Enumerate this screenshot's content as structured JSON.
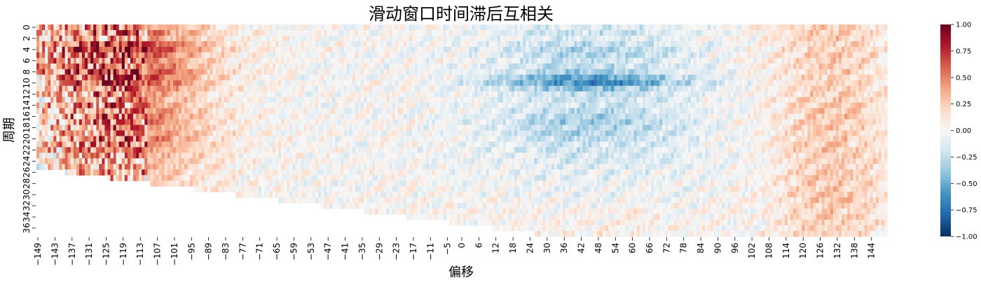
{
  "chart_data": {
    "type": "heatmap",
    "title": "滑动窗口时间滞后互相关",
    "xlabel": "偏移",
    "ylabel": "周期",
    "x_range": [
      -149,
      149
    ],
    "y_range": [
      0,
      37
    ],
    "x_tick_labels": [
      "-149",
      "-143",
      "-137",
      "-131",
      "-125",
      "-119",
      "-113",
      "-107",
      "-101",
      "-95",
      "-89",
      "-83",
      "-77",
      "-71",
      "-65",
      "-59",
      "-53",
      "-47",
      "-41",
      "-35",
      "-29",
      "-23",
      "-17",
      "-11",
      "-5",
      "0",
      "6",
      "12",
      "18",
      "24",
      "30",
      "36",
      "42",
      "48",
      "54",
      "60",
      "66",
      "72",
      "78",
      "84",
      "90",
      "96",
      "102",
      "108",
      "114",
      "120",
      "126",
      "132",
      "138",
      "144"
    ],
    "y_tick_labels": [
      "0",
      "2",
      "4",
      "6",
      "8",
      "10",
      "12",
      "14",
      "16",
      "18",
      "20",
      "22",
      "24",
      "26",
      "28",
      "30",
      "32",
      "34",
      "36"
    ],
    "colormap": {
      "name": "RdBu_r",
      "stops": [
        "#053061",
        "#2166ac",
        "#4393c3",
        "#92c5de",
        "#d1e5f0",
        "#f7f7f7",
        "#fddbc7",
        "#f4a582",
        "#d6604d",
        "#b2182b",
        "#67001f"
      ]
    },
    "colorbar": {
      "min": -1.0,
      "max": 1.0,
      "tick_labels": [
        "1.00",
        "0.75",
        "0.50",
        "0.25",
        "0.00",
        "−0.25",
        "−0.50",
        "−0.75",
        "−1.00"
      ],
      "tick_values": [
        1.0,
        0.75,
        0.5,
        0.25,
        0.0,
        -0.25,
        -0.5,
        -0.75,
        -1.0
      ]
    },
    "rows": [
      {
        "period": 0,
        "valid_from": -149,
        "valid_to": 149,
        "left_peak": 0.55,
        "mid_band": -0.15
      },
      {
        "period": 1,
        "valid_from": -149,
        "valid_to": 149,
        "left_peak": 0.6,
        "mid_band": -0.2
      },
      {
        "period": 2,
        "valid_from": -149,
        "valid_to": 149,
        "left_peak": 0.5,
        "mid_band": -0.15
      },
      {
        "period": 3,
        "valid_from": -149,
        "valid_to": 149,
        "left_peak": 0.8,
        "mid_band": -0.25
      },
      {
        "period": 4,
        "valid_from": -149,
        "valid_to": 149,
        "left_peak": 0.85,
        "mid_band": -0.3
      },
      {
        "period": 5,
        "valid_from": -149,
        "valid_to": 149,
        "left_peak": 0.7,
        "mid_band": -0.3
      },
      {
        "period": 6,
        "valid_from": -149,
        "valid_to": 149,
        "left_peak": 0.6,
        "mid_band": -0.2
      },
      {
        "period": 7,
        "valid_from": -149,
        "valid_to": 149,
        "left_peak": 0.65,
        "mid_band": -0.25
      },
      {
        "period": 8,
        "valid_from": -149,
        "valid_to": 149,
        "left_peak": 0.75,
        "mid_band": -0.35
      },
      {
        "period": 9,
        "valid_from": -149,
        "valid_to": 149,
        "left_peak": 0.7,
        "mid_band": -0.55
      },
      {
        "period": 10,
        "valid_from": -149,
        "valid_to": 149,
        "left_peak": 0.7,
        "mid_band": -0.65
      },
      {
        "period": 11,
        "valid_from": -149,
        "valid_to": 149,
        "left_peak": 0.6,
        "mid_band": -0.4
      },
      {
        "period": 12,
        "valid_from": -149,
        "valid_to": 149,
        "left_peak": 0.5,
        "mid_band": -0.25
      },
      {
        "period": 13,
        "valid_from": -149,
        "valid_to": 149,
        "left_peak": 0.45,
        "mid_band": -0.2
      },
      {
        "period": 14,
        "valid_from": -149,
        "valid_to": 149,
        "left_peak": 0.5,
        "mid_band": -0.2
      },
      {
        "period": 15,
        "valid_from": -149,
        "valid_to": 149,
        "left_peak": 0.55,
        "mid_band": -0.25
      },
      {
        "period": 16,
        "valid_from": -149,
        "valid_to": 149,
        "left_peak": 0.6,
        "mid_band": -0.3
      },
      {
        "period": 17,
        "valid_from": -149,
        "valid_to": 149,
        "left_peak": 0.55,
        "mid_band": -0.35
      },
      {
        "period": 18,
        "valid_from": -149,
        "valid_to": 149,
        "left_peak": 0.5,
        "mid_band": -0.3
      },
      {
        "period": 19,
        "valid_from": -149,
        "valid_to": 149,
        "left_peak": 0.55,
        "mid_band": -0.3
      },
      {
        "period": 20,
        "valid_from": -149,
        "valid_to": 149,
        "left_peak": 0.6,
        "mid_band": -0.25
      },
      {
        "period": 21,
        "valid_from": -149,
        "valid_to": 149,
        "left_peak": 0.55,
        "mid_band": -0.2
      },
      {
        "period": 22,
        "valid_from": -149,
        "valid_to": 149,
        "left_peak": 0.45,
        "mid_band": -0.2
      },
      {
        "period": 23,
        "valid_from": -149,
        "valid_to": 149,
        "left_peak": 0.4,
        "mid_band": -0.15
      },
      {
        "period": 24,
        "valid_from": -149,
        "valid_to": 149,
        "left_peak": 0.4,
        "mid_band": -0.15
      },
      {
        "period": 25,
        "valid_from": -149,
        "valid_to": 149,
        "left_peak": 0.35,
        "mid_band": -0.1
      },
      {
        "period": 26,
        "valid_from": -139,
        "valid_to": 149,
        "left_peak": 0.35,
        "mid_band": -0.1
      },
      {
        "period": 27,
        "valid_from": -124,
        "valid_to": 149,
        "left_peak": 0.3,
        "mid_band": -0.1
      },
      {
        "period": 28,
        "valid_from": -109,
        "valid_to": 149,
        "left_peak": 0.3,
        "mid_band": -0.05
      },
      {
        "period": 29,
        "valid_from": -94,
        "valid_to": 149,
        "left_peak": 0.25,
        "mid_band": -0.05
      },
      {
        "period": 30,
        "valid_from": -79,
        "valid_to": 149,
        "left_peak": 0.25,
        "mid_band": -0.05
      },
      {
        "period": 31,
        "valid_from": -64,
        "valid_to": 149,
        "left_peak": 0.2,
        "mid_band": 0.0
      },
      {
        "period": 32,
        "valid_from": -49,
        "valid_to": 149,
        "left_peak": 0.2,
        "mid_band": 0.0
      },
      {
        "period": 33,
        "valid_from": -34,
        "valid_to": 149,
        "left_peak": 0.2,
        "mid_band": 0.05
      },
      {
        "period": 34,
        "valid_from": -19,
        "valid_to": 149,
        "left_peak": 0.15,
        "mid_band": 0.05
      },
      {
        "period": 35,
        "valid_from": -4,
        "valid_to": 149,
        "left_peak": 0.15,
        "mid_band": 0.05
      },
      {
        "period": 36,
        "valid_from": 11,
        "valid_to": 149,
        "left_peak": 0.1,
        "mid_band": 0.05
      },
      {
        "period": 37,
        "valid_from": 26,
        "valid_to": 149,
        "left_peak": 0.1,
        "mid_band": 0.05
      }
    ]
  }
}
